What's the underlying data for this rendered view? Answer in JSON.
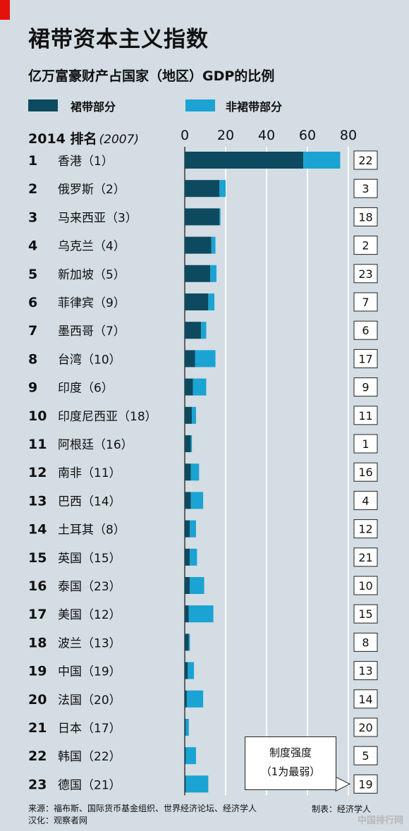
{
  "colors": {
    "crony": "#0d4a5f",
    "non_crony": "#1aa3d3",
    "background": "#d3dde3",
    "accent": "#e3120b"
  },
  "header": {
    "title": "裙带资本主义指数",
    "subtitle": "亿万富豪财产占国家（地区）GDP的比例"
  },
  "legend": {
    "crony": "裙带部分",
    "non_crony": "非裙带部分"
  },
  "rank_header": {
    "year": "2014 排名",
    "prev": "(2007)"
  },
  "callout": {
    "line1": "制度强度",
    "line2": "（1为最弱）"
  },
  "footer": {
    "source": "来源：福布斯、国际货币基金组织、世界经济论坛、经济学人",
    "translation": "汉化：观察者网",
    "credit": "制表：经济学人",
    "watermark": "中国排行网"
  },
  "chart_data": {
    "type": "bar",
    "orientation": "horizontal",
    "stacked": true,
    "xlim": [
      0,
      80
    ],
    "x_ticks": [
      "0",
      "20",
      "40",
      "60",
      "80"
    ],
    "grid": true,
    "series_names": [
      "裙带部分",
      "非裙带部分"
    ],
    "rows": [
      {
        "rank": "1",
        "label": "香港（1）",
        "crony": 58,
        "non_crony": 18,
        "institution": "22"
      },
      {
        "rank": "2",
        "label": "俄罗斯（2）",
        "crony": 17,
        "non_crony": 3,
        "institution": "3"
      },
      {
        "rank": "3",
        "label": "马来西亚（3）",
        "crony": 17,
        "non_crony": 0.5,
        "institution": "18"
      },
      {
        "rank": "4",
        "label": "乌克兰（4）",
        "crony": 13,
        "non_crony": 2,
        "institution": "2"
      },
      {
        "rank": "5",
        "label": "新加坡（5）",
        "crony": 12.5,
        "non_crony": 3,
        "institution": "23"
      },
      {
        "rank": "6",
        "label": "菲律宾（9）",
        "crony": 11.5,
        "non_crony": 3,
        "institution": "7"
      },
      {
        "rank": "7",
        "label": "墨西哥（7）",
        "crony": 8,
        "non_crony": 2.5,
        "institution": "6"
      },
      {
        "rank": "8",
        "label": "台湾（10）",
        "crony": 5,
        "non_crony": 10,
        "institution": "17"
      },
      {
        "rank": "9",
        "label": "印度（6）",
        "crony": 4,
        "non_crony": 6.5,
        "institution": "9"
      },
      {
        "rank": "10",
        "label": "印度尼西亚（18）",
        "crony": 3.5,
        "non_crony": 2,
        "institution": "11"
      },
      {
        "rank": "11",
        "label": "阿根廷（16）",
        "crony": 3,
        "non_crony": 0.5,
        "institution": "1"
      },
      {
        "rank": "12",
        "label": "南非（11）",
        "crony": 3,
        "non_crony": 4,
        "institution": "16"
      },
      {
        "rank": "13",
        "label": "巴西（14）",
        "crony": 3,
        "non_crony": 6,
        "institution": "4"
      },
      {
        "rank": "14",
        "label": "土耳其（8）",
        "crony": 2.5,
        "non_crony": 3,
        "institution": "12"
      },
      {
        "rank": "15",
        "label": "英国（15）",
        "crony": 2.5,
        "non_crony": 3.5,
        "institution": "21"
      },
      {
        "rank": "16",
        "label": "泰国（23）",
        "crony": 2.5,
        "non_crony": 7,
        "institution": "10"
      },
      {
        "rank": "17",
        "label": "美国（12）",
        "crony": 2,
        "non_crony": 12,
        "institution": "15"
      },
      {
        "rank": "18",
        "label": "波兰（13）",
        "crony": 2,
        "non_crony": 0.5,
        "institution": "8"
      },
      {
        "rank": "19",
        "label": "中国（19）",
        "crony": 1.5,
        "non_crony": 3,
        "institution": "13"
      },
      {
        "rank": "20",
        "label": "法国（20）",
        "crony": 1,
        "non_crony": 8,
        "institution": "14"
      },
      {
        "rank": "21",
        "label": "日本（17）",
        "crony": 0.5,
        "non_crony": 1.5,
        "institution": "20"
      },
      {
        "rank": "22",
        "label": "韩国（22）",
        "crony": 0.5,
        "non_crony": 5,
        "institution": "5"
      },
      {
        "rank": "23",
        "label": "德国（21）",
        "crony": 0.5,
        "non_crony": 11,
        "institution": "19"
      }
    ]
  }
}
